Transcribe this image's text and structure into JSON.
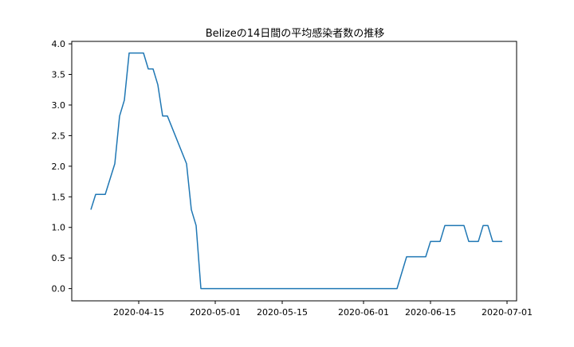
{
  "chart_data": {
    "type": "line",
    "title": "Belizeの14日間の平均感染者数の推移",
    "xlabel": "",
    "ylabel": "",
    "xlim": [
      "2020-04-01",
      "2020-07-03"
    ],
    "ylim": [
      -0.2,
      4.04
    ],
    "x_ticks": [
      "2020-04-15",
      "2020-05-01",
      "2020-05-15",
      "2020-06-01",
      "2020-06-15",
      "2020-07-01"
    ],
    "y_ticks": [
      0.0,
      0.5,
      1.0,
      1.5,
      2.0,
      2.5,
      3.0,
      3.5,
      4.0
    ],
    "y_tick_labels": [
      "0.0",
      "0.5",
      "1.0",
      "1.5",
      "2.0",
      "2.5",
      "3.0",
      "3.5",
      "4.0"
    ],
    "grid": false,
    "legend": "none",
    "line_color": "#1f77b4",
    "series": [
      {
        "x": [
          "2020-04-05",
          "2020-04-06",
          "2020-04-07",
          "2020-04-08",
          "2020-04-10",
          "2020-04-11",
          "2020-04-12",
          "2020-04-13",
          "2020-04-16",
          "2020-04-17",
          "2020-04-18",
          "2020-04-19",
          "2020-04-20",
          "2020-04-21",
          "2020-04-25",
          "2020-04-26",
          "2020-04-27",
          "2020-04-28",
          "2020-05-02",
          "2020-06-07",
          "2020-06-08",
          "2020-06-09",
          "2020-06-10",
          "2020-06-14",
          "2020-06-15",
          "2020-06-16",
          "2020-06-17",
          "2020-06-18",
          "2020-06-22",
          "2020-06-23",
          "2020-06-24",
          "2020-06-25",
          "2020-06-26",
          "2020-06-27",
          "2020-06-28",
          "2020-06-29",
          "2020-06-30"
        ],
        "values": [
          1.29,
          1.54,
          1.54,
          1.54,
          2.04,
          2.82,
          3.08,
          3.85,
          3.85,
          3.59,
          3.59,
          3.33,
          2.82,
          2.82,
          2.04,
          1.29,
          1.03,
          0.0,
          0.0,
          0.0,
          0.0,
          0.26,
          0.52,
          0.52,
          0.77,
          0.77,
          0.77,
          1.03,
          1.03,
          0.77,
          0.77,
          0.77,
          1.03,
          1.03,
          0.77,
          0.77,
          0.77
        ]
      }
    ]
  }
}
